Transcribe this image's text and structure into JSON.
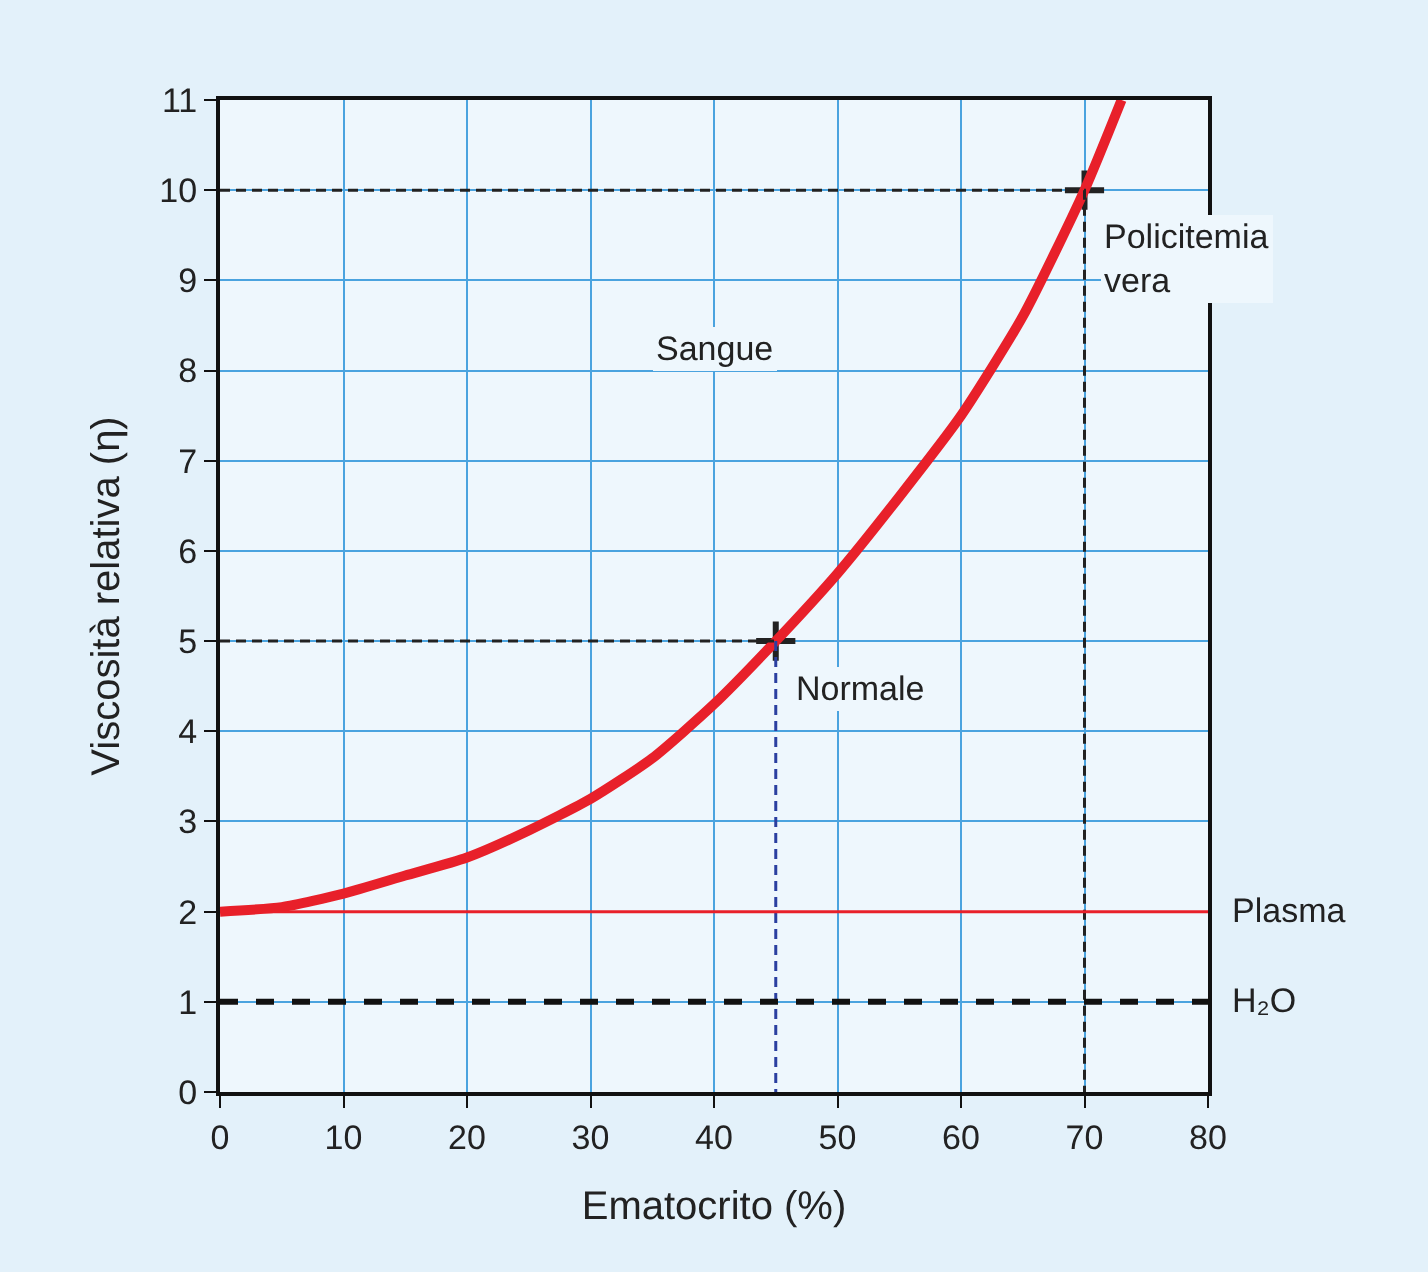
{
  "chart_data": {
    "type": "line",
    "xlabel": "Ematocrito (%)",
    "ylabel": "Viscosità relativa (η)",
    "xlim": [
      0,
      80
    ],
    "xticks": [
      0,
      10,
      20,
      30,
      40,
      50,
      60,
      70,
      80
    ],
    "ylim": [
      0,
      11
    ],
    "yticks": [
      0,
      1,
      2,
      3,
      4,
      5,
      6,
      7,
      8,
      9,
      10,
      11
    ],
    "grid": true,
    "series": [
      {
        "type": "scatter",
        "color": "#222222",
        "marker": "cross",
        "x": [
          45,
          70
        ],
        "values": [
          5,
          10
        ]
      },
      {
        "color": "#e8202a",
        "x": [
          0,
          5,
          10,
          15,
          20,
          25,
          30,
          35,
          40,
          45,
          50,
          55,
          60,
          65,
          70,
          73
        ],
        "values": [
          2.0,
          2.05,
          2.2,
          2.4,
          2.6,
          2.9,
          3.25,
          3.7,
          4.3,
          5.0,
          5.75,
          6.6,
          7.5,
          8.6,
          10.0,
          11.0
        ]
      },
      {
        "type": "line",
        "color": "#222222",
        "line_style": "dashed",
        "x": [
          0,
          45
        ],
        "values": [
          5,
          5
        ]
      },
      {
        "type": "line",
        "color": "#2a3fa0",
        "line_style": "dashed",
        "x": [
          45,
          45
        ],
        "values": [
          5,
          0
        ]
      },
      {
        "type": "line",
        "color": "#222222",
        "line_style": "dashed",
        "x": [
          0,
          70,
          70
        ],
        "values": [
          10,
          10,
          0
        ]
      }
    ],
    "ref_lines": [
      {
        "axis": "y",
        "value": 2,
        "label": "Plasma",
        "color": "#e8202a",
        "line_style": "solid"
      },
      {
        "axis": "y",
        "value": 1,
        "label": "H₂O",
        "color": "#111111",
        "line_style": "dashed"
      }
    ],
    "annotations": [
      "Sangue",
      {
        "text": "Normale",
        "x": 45,
        "y": 5
      },
      {
        "text": "Policitemia\nvera",
        "x": 70,
        "y": 10
      }
    ]
  }
}
